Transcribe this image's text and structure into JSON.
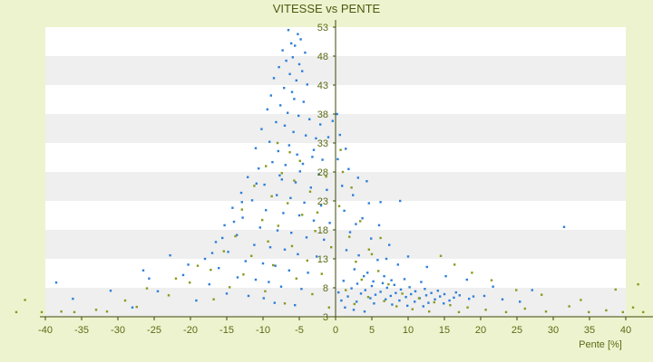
{
  "chart_data": {
    "type": "scatter",
    "title": "VITESSE vs PENTE",
    "xlabel": "Pente [%]",
    "ylabel": "",
    "xlim": [
      -40,
      40
    ],
    "ylim": [
      3,
      53
    ],
    "x_ticks": [
      -40,
      -35,
      -30,
      -25,
      -20,
      -15,
      -10,
      -5,
      0,
      5,
      10,
      15,
      20,
      25,
      30,
      35,
      40
    ],
    "y_ticks": [
      3,
      8,
      13,
      18,
      23,
      28,
      33,
      38,
      43,
      48,
      53
    ],
    "x_tick_labels": [
      "-40",
      "-35",
      "-30",
      "-25",
      "-20",
      "-15",
      "-10",
      "-5",
      "0",
      "5",
      "10",
      "15",
      "20",
      "25",
      "30",
      "35",
      "40"
    ],
    "y_tick_labels": [
      "3",
      "8",
      "13",
      "18",
      "23",
      "28",
      "33",
      "38",
      "43",
      "48",
      "53"
    ],
    "grid": "horizontal alternating bands",
    "legend": "none",
    "colors": {
      "blue": "#2e7fd8",
      "olive": "#8a9a1e",
      "band_light": "#ffffff",
      "band_dark": "#efefef",
      "background": "#eef3cf",
      "axis": "#3a4a0a"
    },
    "series": [
      {
        "color": "blue",
        "points": [
          [
            -6.5,
            52.5
          ],
          [
            -5.2,
            51.8
          ],
          [
            -4.8,
            50.9
          ],
          [
            -6.1,
            50.2
          ],
          [
            -5.6,
            49.8
          ],
          [
            -7.3,
            49.0
          ],
          [
            -4.2,
            48.6
          ],
          [
            -5.9,
            47.8
          ],
          [
            -6.8,
            47.2
          ],
          [
            -5.0,
            46.6
          ],
          [
            -7.8,
            46.1
          ],
          [
            -4.6,
            45.4
          ],
          [
            -6.3,
            44.9
          ],
          [
            -8.5,
            44.2
          ],
          [
            -5.4,
            43.8
          ],
          [
            -3.9,
            43.1
          ],
          [
            -7.1,
            42.5
          ],
          [
            -6.0,
            41.8
          ],
          [
            -8.9,
            41.2
          ],
          [
            -5.7,
            40.6
          ],
          [
            -4.4,
            40.1
          ],
          [
            -7.6,
            39.5
          ],
          [
            -9.4,
            38.8
          ],
          [
            -6.6,
            38.2
          ],
          [
            -5.1,
            37.7
          ],
          [
            -3.6,
            37.1
          ],
          [
            -8.2,
            36.6
          ],
          [
            -7.0,
            36.0
          ],
          [
            -10.2,
            35.4
          ],
          [
            -5.8,
            34.9
          ],
          [
            -4.1,
            34.3
          ],
          [
            -2.7,
            33.8
          ],
          [
            -9.1,
            33.2
          ],
          [
            -6.4,
            32.6
          ],
          [
            -11.0,
            32.1
          ],
          [
            -7.9,
            31.6
          ],
          [
            -5.3,
            31.0
          ],
          [
            -3.2,
            30.6
          ],
          [
            -1.8,
            30.1
          ],
          [
            -8.7,
            29.7
          ],
          [
            -6.9,
            29.2
          ],
          [
            -10.6,
            28.6
          ],
          [
            -4.9,
            28.1
          ],
          [
            -2.3,
            27.6
          ],
          [
            -12.1,
            27.1
          ],
          [
            -7.4,
            26.7
          ],
          [
            -5.5,
            26.2
          ],
          [
            -9.8,
            25.8
          ],
          [
            -3.4,
            25.3
          ],
          [
            -1.2,
            24.9
          ],
          [
            -13.0,
            24.4
          ],
          [
            -8.1,
            24.0
          ],
          [
            -6.2,
            23.5
          ],
          [
            -11.5,
            23.1
          ],
          [
            -4.3,
            22.7
          ],
          [
            -2.0,
            22.2
          ],
          [
            -14.2,
            21.8
          ],
          [
            -9.6,
            21.4
          ],
          [
            -7.2,
            20.9
          ],
          [
            -5.0,
            20.5
          ],
          [
            -12.8,
            20.1
          ],
          [
            -3.0,
            19.6
          ],
          [
            -0.8,
            19.2
          ],
          [
            -15.3,
            18.8
          ],
          [
            -10.4,
            18.4
          ],
          [
            -8.0,
            17.9
          ],
          [
            -6.1,
            17.5
          ],
          [
            -13.6,
            17.1
          ],
          [
            -4.0,
            16.7
          ],
          [
            -1.6,
            16.3
          ],
          [
            -16.5,
            15.9
          ],
          [
            -11.2,
            15.4
          ],
          [
            -9.0,
            15.0
          ],
          [
            -7.0,
            14.6
          ],
          [
            -14.8,
            14.2
          ],
          [
            -5.2,
            13.8
          ],
          [
            -2.6,
            13.4
          ],
          [
            -18.0,
            13.0
          ],
          [
            -12.4,
            12.6
          ],
          [
            -10.0,
            12.2
          ],
          [
            -8.3,
            11.8
          ],
          [
            -16.1,
            11.4
          ],
          [
            -6.4,
            11.0
          ],
          [
            -3.8,
            10.6
          ],
          [
            -21.0,
            10.2
          ],
          [
            -13.5,
            9.8
          ],
          [
            -11.0,
            9.4
          ],
          [
            -9.2,
            9.0
          ],
          [
            -17.4,
            8.6
          ],
          [
            -7.5,
            8.2
          ],
          [
            -4.7,
            7.8
          ],
          [
            -24.5,
            7.4
          ],
          [
            -15.0,
            7.0
          ],
          [
            -12.0,
            6.6
          ],
          [
            -9.9,
            6.2
          ],
          [
            -19.2,
            5.8
          ],
          [
            -8.4,
            5.4
          ],
          [
            -5.6,
            5.0
          ],
          [
            -28.0,
            4.6
          ],
          [
            -38.5,
            8.9
          ],
          [
            -36.2,
            6.1
          ],
          [
            -31.0,
            7.5
          ],
          [
            -26.5,
            11.0
          ],
          [
            -22.8,
            13.6
          ],
          [
            -25.7,
            9.6
          ],
          [
            -20.3,
            12.0
          ],
          [
            -2.1,
            36.2
          ],
          [
            0.6,
            34.4
          ],
          [
            1.4,
            32.0
          ],
          [
            0.3,
            30.2
          ],
          [
            1.8,
            28.5
          ],
          [
            3.1,
            27.0
          ],
          [
            0.9,
            25.6
          ],
          [
            2.4,
            24.0
          ],
          [
            4.6,
            22.6
          ],
          [
            1.2,
            21.3
          ],
          [
            3.7,
            20.0
          ],
          [
            6.0,
            18.8
          ],
          [
            2.0,
            17.6
          ],
          [
            4.9,
            16.5
          ],
          [
            7.4,
            15.4
          ],
          [
            1.5,
            14.5
          ],
          [
            3.2,
            13.6
          ],
          [
            5.8,
            12.8
          ],
          [
            8.6,
            12.0
          ],
          [
            2.6,
            11.2
          ],
          [
            4.4,
            10.6
          ],
          [
            6.7,
            10.0
          ],
          [
            9.5,
            9.5
          ],
          [
            11.8,
            9.0
          ],
          [
            1.1,
            9.2
          ],
          [
            3.0,
            8.7
          ],
          [
            5.0,
            8.3
          ],
          [
            7.1,
            8.0
          ],
          [
            9.0,
            7.7
          ],
          [
            11.0,
            7.4
          ],
          [
            13.2,
            7.1
          ],
          [
            15.0,
            6.9
          ],
          [
            17.1,
            6.7
          ],
          [
            19.0,
            6.5
          ],
          [
            2.2,
            7.9
          ],
          [
            4.1,
            7.6
          ],
          [
            6.2,
            7.3
          ],
          [
            8.3,
            7.1
          ],
          [
            10.4,
            6.9
          ],
          [
            12.5,
            6.7
          ],
          [
            14.4,
            6.5
          ],
          [
            16.3,
            6.3
          ],
          [
            18.4,
            6.1
          ],
          [
            3.5,
            7.0
          ],
          [
            5.5,
            6.8
          ],
          [
            7.6,
            6.6
          ],
          [
            9.7,
            6.4
          ],
          [
            11.6,
            6.2
          ],
          [
            13.7,
            6.0
          ],
          [
            15.7,
            5.8
          ],
          [
            1.7,
            6.5
          ],
          [
            4.8,
            6.2
          ],
          [
            6.9,
            6.0
          ],
          [
            8.8,
            5.8
          ],
          [
            10.9,
            5.6
          ],
          [
            12.8,
            5.4
          ],
          [
            14.9,
            5.3
          ],
          [
            2.9,
            5.6
          ],
          [
            5.3,
            5.3
          ],
          [
            7.8,
            5.1
          ],
          [
            9.9,
            4.9
          ],
          [
            12.1,
            4.8
          ],
          [
            0.4,
            7.2
          ],
          [
            0.8,
            5.8
          ],
          [
            1.3,
            4.6
          ],
          [
            2.5,
            4.2
          ],
          [
            4.0,
            3.9
          ],
          [
            3.9,
            10.0
          ],
          [
            5.2,
            9.1
          ],
          [
            6.5,
            8.8
          ],
          [
            7.7,
            9.3
          ],
          [
            8.1,
            8.5
          ],
          [
            10.2,
            8.1
          ],
          [
            12.3,
            7.8
          ],
          [
            14.1,
            7.5
          ],
          [
            16.6,
            7.2
          ],
          [
            20.5,
            6.6
          ],
          [
            23.0,
            6.0
          ],
          [
            25.4,
            5.6
          ],
          [
            27.1,
            7.6
          ],
          [
            31.5,
            18.5
          ],
          [
            6.2,
            22.8
          ],
          [
            8.9,
            23.0
          ],
          [
            4.3,
            26.4
          ],
          [
            2.8,
            19.0
          ],
          [
            7.0,
            13.0
          ],
          [
            10.0,
            13.4
          ],
          [
            12.6,
            11.6
          ],
          [
            15.2,
            10.0
          ],
          [
            18.1,
            9.4
          ],
          [
            21.7,
            8.2
          ],
          [
            0.2,
            38.0
          ],
          [
            -0.4,
            36.8
          ],
          [
            -1.0,
            34.0
          ],
          [
            -3.0,
            31.8
          ],
          [
            -4.5,
            29.4
          ],
          [
            -7.7,
            27.4
          ],
          [
            -10.9,
            26.0
          ],
          [
            -12.9,
            22.8
          ],
          [
            -14.0,
            19.4
          ],
          [
            -15.6,
            16.6
          ],
          [
            -17.0,
            14.0
          ]
        ]
      },
      {
        "color": "olive",
        "points": [
          [
            -8.0,
            33.0
          ],
          [
            -6.3,
            31.4
          ],
          [
            -4.9,
            29.9
          ],
          [
            -9.6,
            29.0
          ],
          [
            -7.4,
            27.8
          ],
          [
            -5.7,
            26.5
          ],
          [
            -11.2,
            25.6
          ],
          [
            -3.5,
            24.6
          ],
          [
            -8.8,
            23.8
          ],
          [
            -6.6,
            22.6
          ],
          [
            -12.9,
            21.5
          ],
          [
            -4.6,
            20.6
          ],
          [
            -10.1,
            19.7
          ],
          [
            -7.9,
            18.7
          ],
          [
            -2.8,
            17.8
          ],
          [
            -13.8,
            16.9
          ],
          [
            -9.3,
            16.0
          ],
          [
            -6.0,
            15.2
          ],
          [
            -15.4,
            14.3
          ],
          [
            -11.6,
            13.5
          ],
          [
            -3.9,
            12.7
          ],
          [
            -8.6,
            11.9
          ],
          [
            -17.2,
            11.1
          ],
          [
            -12.7,
            10.3
          ],
          [
            -5.4,
            9.6
          ],
          [
            -20.1,
            8.9
          ],
          [
            -14.6,
            8.1
          ],
          [
            -9.7,
            7.4
          ],
          [
            -23.0,
            6.7
          ],
          [
            -16.8,
            6.0
          ],
          [
            -7.0,
            5.3
          ],
          [
            -27.4,
            4.7
          ],
          [
            -33.0,
            4.2
          ],
          [
            -37.8,
            3.9
          ],
          [
            -40.5,
            3.8
          ],
          [
            -36.0,
            3.8
          ],
          [
            -31.5,
            3.9
          ],
          [
            -29.0,
            5.8
          ],
          [
            -26.0,
            7.9
          ],
          [
            -22.0,
            9.6
          ],
          [
            -19.0,
            11.8
          ],
          [
            -44.0,
            3.8
          ],
          [
            -42.8,
            5.9
          ],
          [
            1.0,
            28.0
          ],
          [
            2.2,
            25.3
          ],
          [
            0.5,
            22.1
          ],
          [
            3.4,
            19.5
          ],
          [
            1.9,
            16.8
          ],
          [
            4.6,
            14.6
          ],
          [
            2.8,
            12.5
          ],
          [
            5.9,
            10.9
          ],
          [
            3.6,
            9.4
          ],
          [
            7.3,
            8.6
          ],
          [
            1.4,
            7.6
          ],
          [
            9.2,
            7.0
          ],
          [
            4.5,
            6.4
          ],
          [
            11.5,
            6.2
          ],
          [
            6.7,
            5.7
          ],
          [
            13.6,
            5.5
          ],
          [
            2.6,
            5.2
          ],
          [
            15.8,
            5.0
          ],
          [
            8.4,
            4.8
          ],
          [
            18.2,
            4.6
          ],
          [
            10.6,
            4.3
          ],
          [
            20.7,
            4.2
          ],
          [
            12.9,
            3.9
          ],
          [
            23.5,
            3.8
          ],
          [
            17.0,
            3.8
          ],
          [
            26.1,
            4.4
          ],
          [
            29.0,
            3.9
          ],
          [
            32.2,
            4.8
          ],
          [
            34.9,
            3.8
          ],
          [
            37.3,
            4.1
          ],
          [
            39.6,
            3.8
          ],
          [
            41.0,
            4.6
          ],
          [
            42.4,
            3.8
          ],
          [
            28.4,
            6.8
          ],
          [
            33.8,
            5.9
          ],
          [
            38.6,
            7.7
          ],
          [
            41.7,
            8.6
          ],
          [
            24.9,
            7.6
          ],
          [
            21.5,
            9.3
          ],
          [
            18.8,
            10.6
          ],
          [
            16.4,
            12.0
          ],
          [
            14.5,
            13.5
          ],
          [
            6.2,
            16.6
          ],
          [
            5.0,
            13.8
          ],
          [
            0.7,
            31.8
          ],
          [
            -1.3,
            27.2
          ],
          [
            -2.5,
            21.0
          ],
          [
            -0.6,
            15.0
          ],
          [
            -1.9,
            10.4
          ],
          [
            -3.2,
            6.9
          ],
          [
            -0.9,
            4.6
          ]
        ]
      }
    ]
  }
}
